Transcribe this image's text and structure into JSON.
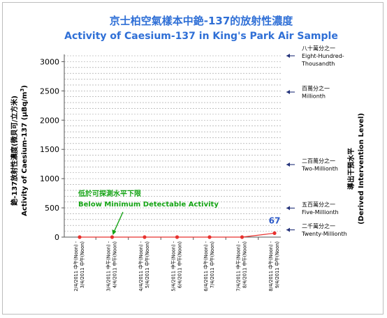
{
  "chart_data": {
    "type": "line",
    "title_zh": "京士柏空氣樣本中銫-137的放射性濃度",
    "title_en": "Activity of Caesium-137 in King's Park Air Sample",
    "ylabel_zh": "銫-137放射性濃度(微貝可/立方米)",
    "ylabel_en": "Activity of Caesium-137 (μBq/m",
    "ylabel_sup": "3",
    "ylabel_end": ")",
    "right_axis_title_zh": "導出干預水平",
    "right_axis_title_en": "(Derived Intervention Level)",
    "ylim": [
      0,
      3100
    ],
    "yticks": [
      0,
      500,
      1000,
      1500,
      2000,
      2500,
      3000
    ],
    "grid": true,
    "categories": [
      [
        "2/4/2011 中午(Noon) -",
        "3/4/2011 中午(Noon)"
      ],
      [
        "3/4/2011 中午(Noon) -",
        "4/4/2011 中午(Noon)"
      ],
      [
        "4/4/2011 中午(Noon) -",
        "5/4/2011 中午(Noon)"
      ],
      [
        "5/4/2011 中午(Noon) -",
        "6/4/2011 中午(Noon)"
      ],
      [
        "6/4/2011 中午(Noon) -",
        "7/4/2011 中午(Noon)"
      ],
      [
        "7/4/2011 中午(Noon) -",
        "8/4/2011 中午(Noon)"
      ],
      [
        "8/4/2011 中午(Noon) -",
        "9/4/2011 中午(Noon)"
      ]
    ],
    "values": [
      0,
      0,
      0,
      0,
      0,
      0,
      67
    ],
    "data_labels": [
      "",
      "",
      "",
      "",
      "",
      "",
      "67"
    ],
    "series_color": "#e8312d",
    "data_label_color": "#2f5cc8",
    "annotation": {
      "zh": "低於可探測水平下限",
      "en": "Below  Minimum Detectable Activity",
      "color": "#14a314",
      "points_to_index": 1
    },
    "reference_levels": [
      {
        "value": 3100,
        "lines": [
          "八十萬分之一",
          "Eight-Hundred-",
          "Thousandth"
        ]
      },
      {
        "value": 2480,
        "lines": [
          "百萬分之一",
          "Millionth"
        ]
      },
      {
        "value": 1240,
        "lines": [
          "二百萬分之一",
          "Two-Millionth"
        ]
      },
      {
        "value": 496,
        "lines": [
          "五百萬分之一",
          "Five-Millionth"
        ]
      },
      {
        "value": 124,
        "lines": [
          "二千萬分之一",
          "Twenty-Millionth"
        ]
      }
    ]
  }
}
